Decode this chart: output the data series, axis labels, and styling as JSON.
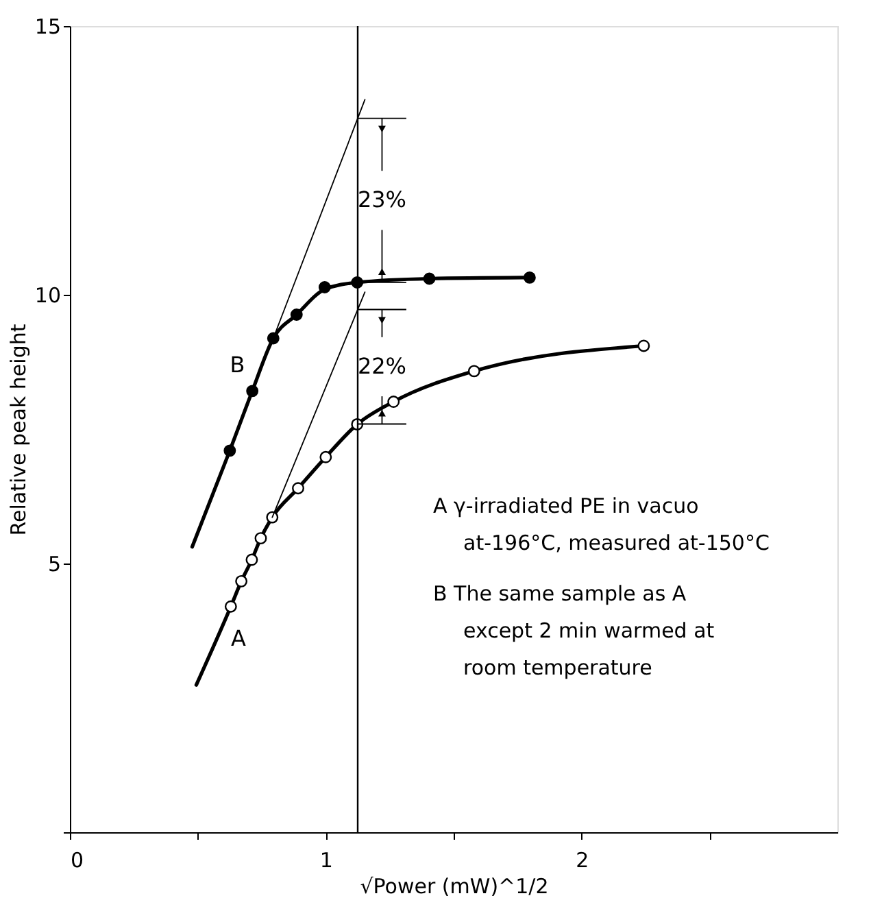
{
  "chart_data": {
    "type": "line",
    "xlabel": "√Power (mW)^1/2",
    "ylabel": "Relative peak height",
    "xlim": [
      0,
      3
    ],
    "ylim": [
      0,
      15
    ],
    "xticks": [
      {
        "value": 0,
        "label": "0"
      },
      {
        "value": 0.5,
        "label": null
      },
      1,
      {
        "value": 1.5,
        "label": null
      },
      2,
      {
        "value": 2.5,
        "label": null
      }
    ],
    "yticks": [
      {
        "value": 0,
        "label": null
      },
      5,
      10,
      15
    ],
    "line_style": "solid",
    "series": [
      {
        "color": "#000000",
        "x": [
          0.478,
          0.625,
          0.713,
          0.795,
          0.886,
          0.996,
          1.123,
          1.405,
          1.797
        ],
        "values": [
          5.31,
          7.1,
          8.21,
          9.19,
          9.63,
          10.1,
          10.23,
          10.3,
          10.32
        ]
      },
      {
        "type": "scatter",
        "color": "#000000",
        "marker": "circle",
        "x": [
          0.625,
          0.713,
          0.795,
          0.886,
          0.996,
          1.123,
          1.405,
          1.797
        ],
        "values": [
          7.1,
          8.21,
          9.19,
          9.63,
          10.14,
          10.23,
          10.3,
          10.32
        ]
      },
      {
        "color": "#000000",
        "x": [
          0.795,
          1.153
        ],
        "values": [
          9.19,
          13.63
        ]
      },
      {
        "color": "#000000",
        "x": [
          0.494,
          0.629,
          0.67,
          0.711,
          0.746,
          0.791,
          0.892,
          1.0,
          1.123,
          1.265,
          1.58,
          2.243
        ],
        "values": [
          2.74,
          4.2,
          4.67,
          5.07,
          5.47,
          5.86,
          6.4,
          6.98,
          7.59,
          8.01,
          8.58,
          9.05
        ]
      },
      {
        "type": "scatter",
        "color": "#ffffff",
        "marker": "circle",
        "x": [
          0.629,
          0.67,
          0.711,
          0.746,
          0.791,
          0.892,
          1.0,
          1.123,
          1.265,
          1.58,
          2.243
        ],
        "values": [
          4.2,
          4.67,
          5.07,
          5.47,
          5.86,
          6.4,
          6.98,
          7.59,
          8.01,
          8.58,
          9.05
        ]
      },
      {
        "color": "#000000",
        "x": [
          0.791,
          1.153
        ],
        "values": [
          5.86,
          10.05
        ]
      }
    ],
    "ref_lines": [
      {
        "axis": "x",
        "value": 1.125,
        "color": "#000000"
      }
    ],
    "annotations": [
      {
        "text": "23%",
        "x": 1.22,
        "y": 10.23
      },
      "22%",
      "B",
      "A",
      "A  γ-irradiated PE in vacuo",
      "at-196°C, measured at-150°C",
      "B  The same sample as A",
      "except 2 min warmed at",
      "room temperature"
    ]
  }
}
